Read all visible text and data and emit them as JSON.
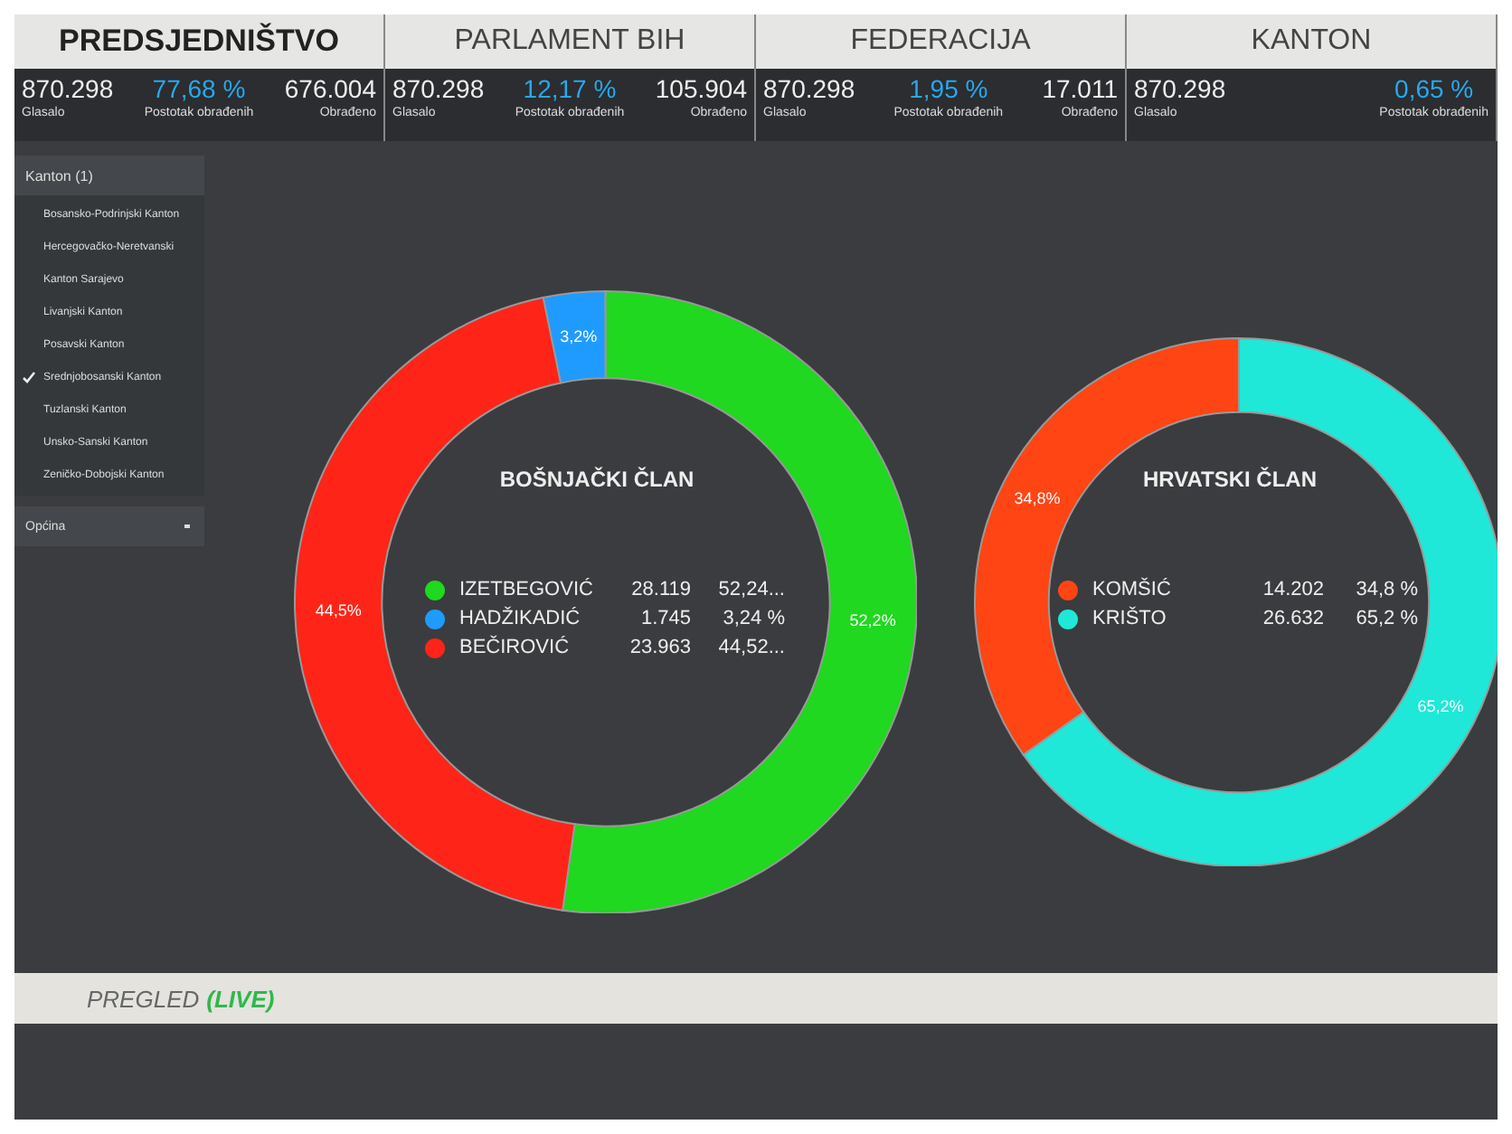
{
  "chart_data": [
    {
      "type": "other",
      "categories": [
        "PREDSJEDNIŠTVO",
        "PARLAMENT BIH",
        "FEDERACIJA",
        "KANTON"
      ],
      "annotations": [
        "870.298",
        "Glasalo",
        "77,68 %",
        "Postotak obrađenih",
        "676.004",
        "Obrađeno",
        "870.298",
        "Glasalo",
        "12,17 %",
        "Postotak obrađenih",
        "105.904",
        "Obrađeno",
        "870.298",
        "Glasalo",
        "1,95 %",
        "Postotak obrađenih",
        "17.011",
        "Obrađeno",
        "870.298",
        "Glasalo",
        "0,65 %",
        "Postotak obrađenih"
      ]
    },
    {
      "type": "other",
      "title": "Kanton (1)",
      "annotations": [
        "Bosansko-Podrinjski Kanton",
        "Hercegovačko-Neretvanski",
        "Kanton Sarajevo",
        "Livanjski Kanton",
        "Posavski Kanton",
        "Srednjobosanski Kanton",
        "Tuzlanski Kanton",
        "Unsko-Sanski Kanton",
        "Zeničko-Dobojski Kanton",
        "Općina"
      ]
    },
    {
      "type": "donut",
      "title": "BOŠNJAČKI ČLAN",
      "categories": [
        "IZETBEGOVIĆ",
        "HADŽIKADIĆ",
        "BEČIROVIĆ"
      ],
      "values": [
        52.2,
        3.2,
        44.5
      ],
      "colors": [
        "#1fd81f",
        "#1f9bff",
        "#ff2418"
      ],
      "value_labels": [
        "52,2%",
        "3,2%",
        "44,5%"
      ],
      "annotations": [
        "28.119",
        "52,24...",
        "1.745",
        "3,24 %",
        "23.963",
        "44,52..."
      ],
      "legend": "center"
    },
    {
      "type": "donut",
      "title": "HRVATSKI ČLAN",
      "categories": [
        "KOMŠIĆ",
        "KRIŠTO"
      ],
      "values": [
        34.8,
        65.2
      ],
      "colors": [
        "#ff4514",
        "#1fe8d8"
      ],
      "value_labels": [
        "34,8%",
        "65,2%"
      ],
      "annotations": [
        "14.202",
        "34,8 %",
        "26.632",
        "65,2 %"
      ],
      "legend": "center"
    },
    {
      "type": "other",
      "title": "PREGLED",
      "subtitle": "(LIVE)"
    }
  ]
}
